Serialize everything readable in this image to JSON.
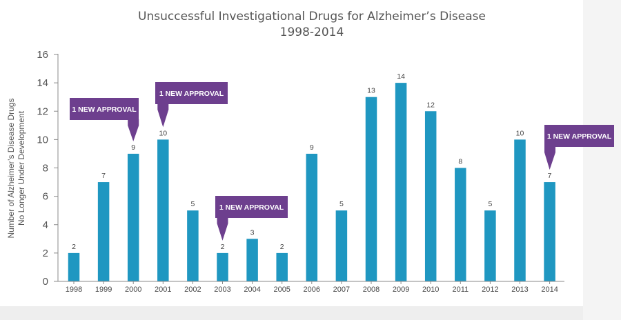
{
  "chart_data": {
    "type": "bar",
    "title": "Unsuccessful Investigational Drugs for Alzheimer’s Disease",
    "subtitle": "1998-2014",
    "ylabel_line1": "Number of Alzheimer’s Disease Drugs",
    "ylabel_line2": "No Longer Under Development",
    "xlabel": "",
    "ylim": [
      0,
      16
    ],
    "yticks": [
      0,
      2,
      4,
      6,
      8,
      10,
      12,
      14,
      16
    ],
    "categories": [
      "1998",
      "1999",
      "2000",
      "2001",
      "2002",
      "2003",
      "2004",
      "2005",
      "2006",
      "2007",
      "2008",
      "2009",
      "2010",
      "2011",
      "2012",
      "2013",
      "2014"
    ],
    "values": [
      2,
      7,
      9,
      10,
      5,
      2,
      3,
      2,
      9,
      5,
      13,
      14,
      12,
      8,
      5,
      10,
      7
    ],
    "annotations": [
      {
        "category": "2000",
        "text": "1 NEW APPROVAL"
      },
      {
        "category": "2001",
        "text": "1 NEW APPROVAL"
      },
      {
        "category": "2003",
        "text": "1 NEW APPROVAL"
      },
      {
        "category": "2014",
        "text": "1 NEW APPROVAL"
      }
    ],
    "grid": false,
    "colors": {
      "bar": "#1f97c1",
      "callout": "#6d3f8e",
      "axis": "#8a8a8a"
    }
  }
}
